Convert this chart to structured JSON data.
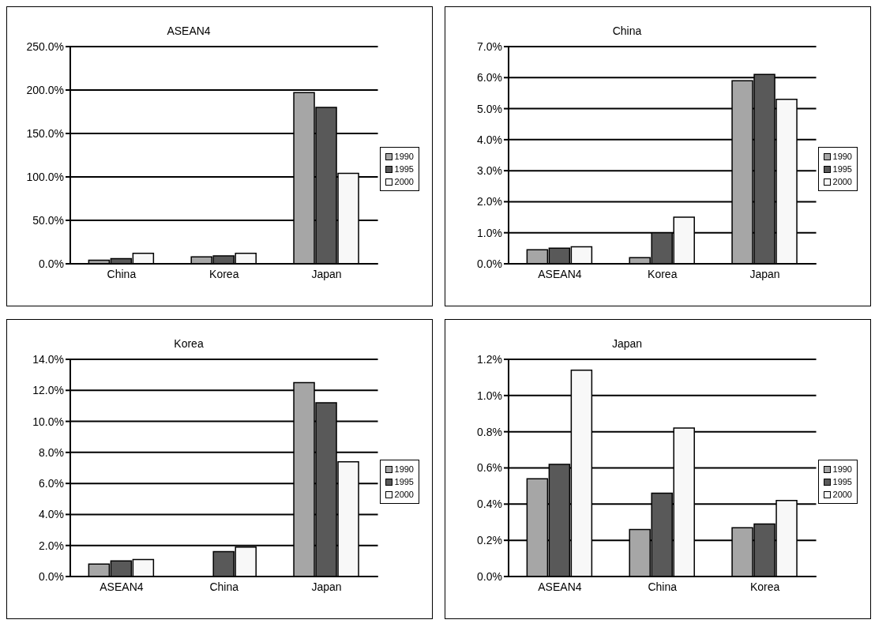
{
  "chart_data": [
    {
      "type": "bar",
      "title": "ASEAN4",
      "categories": [
        "China",
        "Korea",
        "Japan"
      ],
      "series": [
        {
          "name": "1990",
          "color": "#a6a6a6",
          "values": [
            4,
            8,
            197
          ]
        },
        {
          "name": "1995",
          "color": "#595959",
          "values": [
            6,
            9,
            180
          ]
        },
        {
          "name": "2000",
          "color": "#f8f8f8",
          "values": [
            12,
            12,
            104
          ]
        }
      ],
      "ylim": [
        0,
        250
      ],
      "yticks": [
        {
          "value": 0,
          "label": "0.0%"
        },
        {
          "value": 50,
          "label": "50.0%"
        },
        {
          "value": 100,
          "label": "100.0%"
        },
        {
          "value": 150,
          "label": "150.0%"
        },
        {
          "value": 200,
          "label": "200.0%"
        },
        {
          "value": 250,
          "label": "250.0%"
        }
      ],
      "grid": "y",
      "legend": "right"
    },
    {
      "type": "bar",
      "title": "China",
      "categories": [
        "ASEAN4",
        "Korea",
        "Japan"
      ],
      "series": [
        {
          "name": "1990",
          "color": "#a6a6a6",
          "values": [
            0.45,
            0.2,
            5.9
          ]
        },
        {
          "name": "1995",
          "color": "#595959",
          "values": [
            0.5,
            1.0,
            6.1
          ]
        },
        {
          "name": "2000",
          "color": "#f8f8f8",
          "values": [
            0.55,
            1.5,
            5.3
          ]
        }
      ],
      "ylim": [
        0,
        7
      ],
      "yticks": [
        {
          "value": 0,
          "label": "0.0%"
        },
        {
          "value": 1,
          "label": "1.0%"
        },
        {
          "value": 2,
          "label": "2.0%"
        },
        {
          "value": 3,
          "label": "3.0%"
        },
        {
          "value": 4,
          "label": "4.0%"
        },
        {
          "value": 5,
          "label": "5.0%"
        },
        {
          "value": 6,
          "label": "6.0%"
        },
        {
          "value": 7,
          "label": "7.0%"
        }
      ],
      "grid": "y",
      "legend": "right"
    },
    {
      "type": "bar",
      "title": "Korea",
      "categories": [
        "ASEAN4",
        "China",
        "Japan"
      ],
      "series": [
        {
          "name": "1990",
          "color": "#a6a6a6",
          "values": [
            0.8,
            0,
            12.5
          ]
        },
        {
          "name": "1995",
          "color": "#595959",
          "values": [
            1.0,
            1.6,
            11.2
          ]
        },
        {
          "name": "2000",
          "color": "#f8f8f8",
          "values": [
            1.1,
            1.9,
            7.4
          ]
        }
      ],
      "ylim": [
        0,
        14
      ],
      "yticks": [
        {
          "value": 0,
          "label": "0.0%"
        },
        {
          "value": 2,
          "label": "2.0%"
        },
        {
          "value": 4,
          "label": "4.0%"
        },
        {
          "value": 6,
          "label": "6.0%"
        },
        {
          "value": 8,
          "label": "8.0%"
        },
        {
          "value": 10,
          "label": "10.0%"
        },
        {
          "value": 12,
          "label": "12.0%"
        },
        {
          "value": 14,
          "label": "14.0%"
        }
      ],
      "grid": "y",
      "legend": "right"
    },
    {
      "type": "bar",
      "title": "Japan",
      "categories": [
        "ASEAN4",
        "China",
        "Korea"
      ],
      "series": [
        {
          "name": "1990",
          "color": "#a6a6a6",
          "values": [
            0.54,
            0.26,
            0.27
          ]
        },
        {
          "name": "1995",
          "color": "#595959",
          "values": [
            0.62,
            0.46,
            0.29
          ]
        },
        {
          "name": "2000",
          "color": "#f8f8f8",
          "values": [
            1.14,
            0.82,
            0.42
          ]
        }
      ],
      "ylim": [
        0,
        1.2
      ],
      "yticks": [
        {
          "value": 0,
          "label": "0.0%"
        },
        {
          "value": 0.2,
          "label": "0.2%"
        },
        {
          "value": 0.4,
          "label": "0.4%"
        },
        {
          "value": 0.6,
          "label": "0.6%"
        },
        {
          "value": 0.8,
          "label": "0.8%"
        },
        {
          "value": 1.0,
          "label": "1.0%"
        },
        {
          "value": 1.2,
          "label": "1.2%"
        }
      ],
      "grid": "y",
      "legend": "right"
    }
  ]
}
